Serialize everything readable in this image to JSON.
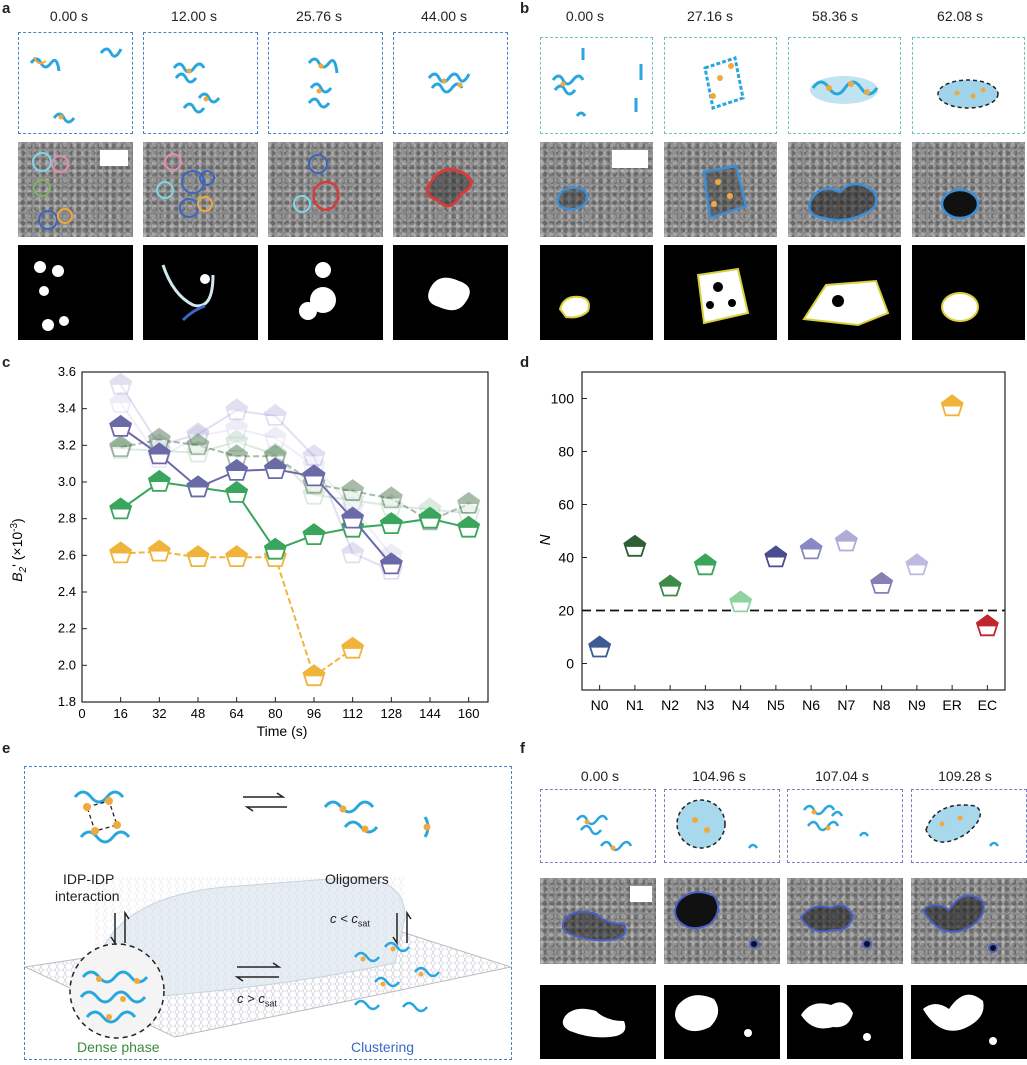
{
  "panels": {
    "a": "a",
    "b": "b",
    "c": "c",
    "d": "d",
    "e": "e",
    "f": "f"
  },
  "panel_a": {
    "times": [
      "0.00 s",
      "12.00 s",
      "25.76 s",
      "44.00 s"
    ]
  },
  "panel_b": {
    "times": [
      "0.00 s",
      "27.16 s",
      "58.36 s",
      "62.08 s"
    ]
  },
  "panel_f": {
    "times": [
      "0.00 s",
      "104.96 s",
      "107.04 s",
      "109.28 s"
    ]
  },
  "panel_e": {
    "label_idp": "IDP-IDP",
    "label_interaction": "interaction",
    "label_oligomers": "Oligomers",
    "label_dense": "Dense phase",
    "label_clustering": "Clustering",
    "c_less": "c < c",
    "c_greater": "c > c",
    "sub_sat": "sat"
  },
  "colors": {
    "blue": "#2aa6df",
    "orange": "#f2a93b",
    "yellow": "#f0b43a",
    "green": "#3aa55d",
    "darkgreen": "#2f5f34",
    "purple": "#6b6aa8",
    "red": "#c0262d",
    "navy": "#3c5a94"
  },
  "chart_data": [
    {
      "type": "line",
      "panel": "c",
      "xlabel": "Time (s)",
      "ylabel": "B₂' (×10⁻³)",
      "ylabel_main": "B",
      "ylabel_sub": "2",
      "ylabel_rest": "' (×10",
      "ylabel_exp": "-3",
      "ylabel_end": ")",
      "xlim": [
        0,
        168
      ],
      "ylim": [
        1.8,
        3.6
      ],
      "x_ticks": [
        0,
        16,
        32,
        48,
        64,
        80,
        96,
        112,
        128,
        144,
        160
      ],
      "y_ticks": [
        1.8,
        2.0,
        2.2,
        2.4,
        2.6,
        2.8,
        3.0,
        3.2,
        3.4,
        3.6
      ],
      "series": [
        {
          "name": "yellow",
          "color": "#f0b43a",
          "opacity": 1,
          "x": [
            16,
            32,
            48,
            64,
            80,
            96,
            112
          ],
          "y": [
            2.61,
            2.62,
            2.59,
            2.59,
            2.59,
            1.94,
            2.09
          ]
        },
        {
          "name": "green",
          "color": "#3aa55d",
          "opacity": 1,
          "x": [
            16,
            32,
            48,
            64,
            80,
            96,
            112,
            128,
            144,
            160
          ],
          "y": [
            2.85,
            3.0,
            2.97,
            2.94,
            2.63,
            2.71,
            2.75,
            2.77,
            2.8,
            2.75
          ]
        },
        {
          "name": "purple",
          "color": "#6b6aa8",
          "opacity": 1,
          "x": [
            16,
            32,
            48,
            64,
            80,
            96,
            112,
            128
          ],
          "y": [
            3.3,
            3.15,
            2.97,
            3.06,
            3.07,
            3.03,
            2.8,
            2.55
          ]
        },
        {
          "name": "darkgreen",
          "color": "#3d6b40",
          "opacity": 0.45,
          "x": [
            16,
            32,
            48,
            64,
            80,
            96,
            112,
            128,
            144,
            160
          ],
          "y": [
            3.19,
            3.23,
            3.2,
            3.14,
            3.14,
            2.99,
            2.95,
            2.91,
            2.79,
            2.88
          ]
        },
        {
          "name": "faint1",
          "color": "#a8a7d6",
          "opacity": 0.35,
          "x": [
            16,
            32,
            48,
            64,
            80,
            96,
            112,
            128
          ],
          "y": [
            3.53,
            3.2,
            3.26,
            3.39,
            3.36,
            3.14,
            2.61,
            2.52
          ]
        },
        {
          "name": "faint2",
          "color": "#9bc7a6",
          "opacity": 0.35,
          "x": [
            16,
            32,
            48,
            64,
            80,
            96,
            112,
            128,
            144,
            160
          ],
          "y": [
            3.18,
            3.17,
            3.16,
            3.22,
            3.15,
            2.93,
            2.9,
            2.87,
            2.85,
            2.83
          ]
        },
        {
          "name": "faint3",
          "color": "#c9c6e8",
          "opacity": 0.3,
          "x": [
            16,
            32,
            48,
            64,
            80,
            96,
            112,
            128
          ],
          "y": [
            3.43,
            3.13,
            3.25,
            3.29,
            3.24,
            3.09,
            2.86,
            2.6
          ]
        }
      ]
    },
    {
      "type": "scatter",
      "panel": "d",
      "ylabel": "N",
      "ylim": [
        -10,
        110
      ],
      "y_ticks": [
        0,
        20,
        40,
        60,
        80,
        100
      ],
      "threshold": 20,
      "categories": [
        "N0",
        "N1",
        "N2",
        "N3",
        "N4",
        "N5",
        "N6",
        "N7",
        "N8",
        "N9",
        "ER",
        "EC"
      ],
      "values": [
        6,
        44,
        29,
        37,
        23,
        40,
        43,
        46,
        30,
        37,
        97,
        14
      ],
      "point_colors": [
        "#3c5a94",
        "#2f5f34",
        "#3e8a49",
        "#3aa55d",
        "#8fd2a2",
        "#4a4d92",
        "#8a88c4",
        "#aeacd8",
        "#8a7fb5",
        "#bdbbe0",
        "#f0b43a",
        "#c0262d"
      ]
    }
  ]
}
